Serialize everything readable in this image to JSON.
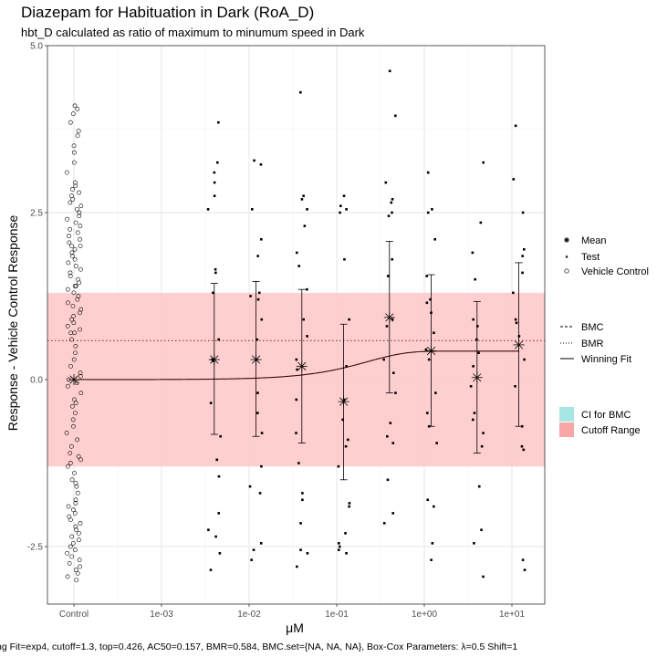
{
  "chart_data": {
    "type": "scatter",
    "title": "Diazepam for Habituation in Dark (RoA_D)",
    "subtitle": "hbt_D calculated as ratio of maximum to minumum speed in Dark",
    "xlabel": "μM",
    "ylabel_numerator": "Response - Vehicle Control Response",
    "caption": "ng Fit=exp4, cutoff=1.3, top=0.426, AC50=0.157, BMR=0.584, BMC.set={NA, NA, NA}, Box-Cox Parameters: λ=0.5 Shift=1",
    "x_scale": "log10",
    "x_ticks": [
      "Control",
      "1e-03",
      "1e-02",
      "1e-01",
      "1e+00",
      "1e+01"
    ],
    "y_ticks": [
      "-2.5",
      "0.0",
      "2.5",
      "5.0"
    ],
    "ylim": [
      -3.3,
      5.0
    ],
    "grid": true,
    "cutoff": 1.3,
    "bmr": 0.584,
    "fit": {
      "model": "exp4",
      "top": 0.426,
      "ac50": 0.157
    },
    "legend": {
      "placement": "right",
      "shapes": [
        {
          "label": "Mean",
          "icon": "asterisk-icon"
        },
        {
          "label": "Test",
          "icon": "triangle-icon"
        },
        {
          "label": "Vehicle Control",
          "icon": "open-circle-icon"
        }
      ],
      "lines": [
        {
          "label": "BMC",
          "icon": "dashed-line-icon"
        },
        {
          "label": "BMR",
          "icon": "dotted-line-icon"
        },
        {
          "label": "Winning Fit",
          "icon": "solid-line-icon"
        }
      ],
      "fills": [
        {
          "label": "CI for BMC",
          "color": "#a8e6e6"
        },
        {
          "label": "Cutoff Range",
          "color": "#f8a6a6"
        }
      ]
    },
    "colors": {
      "cutoff_band": "#ffcccc",
      "bmr_line": "#7a2020",
      "fit_line": "#3a0a0a"
    },
    "control": {
      "x_label": "Control",
      "values": [
        4.05,
        4.1,
        3.98,
        3.85,
        3.72,
        3.65,
        3.5,
        3.4,
        3.25,
        3.1,
        2.95,
        2.9,
        2.85,
        2.8,
        2.75,
        2.7,
        2.65,
        2.6,
        2.55,
        2.5,
        2.45,
        2.4,
        2.35,
        2.3,
        2.25,
        2.2,
        2.15,
        2.1,
        2.05,
        2.0,
        1.95,
        1.9,
        1.85,
        1.8,
        1.75,
        1.7,
        1.65,
        1.6,
        1.55,
        1.5,
        1.45,
        1.4,
        1.35,
        1.3,
        1.25,
        1.2,
        1.15,
        1.1,
        1.05,
        1.0,
        0.95,
        0.9,
        0.85,
        0.8,
        0.75,
        0.7,
        0.6,
        0.5,
        0.4,
        0.3,
        0.2,
        0.1,
        0.05,
        0.0,
        -0.05,
        -0.1,
        -0.2,
        -0.3,
        -0.4,
        -0.5,
        -0.6,
        -0.7,
        -0.8,
        -0.9,
        -1.0,
        -1.1,
        -1.15,
        -1.2,
        -1.25,
        -1.3,
        -1.4,
        -1.5,
        -1.6,
        -1.7,
        -1.8,
        -1.85,
        -1.9,
        -1.95,
        -2.0,
        -2.05,
        -2.1,
        -2.15,
        -2.2,
        -2.25,
        -2.3,
        -2.35,
        -2.4,
        -2.45,
        -2.5,
        -2.55,
        -2.6,
        -2.65,
        -2.7,
        -2.75,
        -2.8,
        -2.85,
        -2.9,
        -2.95,
        -3.0,
        2.0,
        1.4,
        0.7,
        -0.35,
        -1.55
      ],
      "mean": 0.0
    },
    "doses": [
      {
        "x": 0.004,
        "mean": 0.3,
        "ci": [
          -0.82,
          1.44
        ],
        "values": [
          3.85,
          3.25,
          3.1,
          2.95,
          2.75,
          2.55,
          1.65,
          1.6,
          1.3,
          0.6,
          0.3,
          0.28,
          -0.35,
          -0.85,
          -1.2,
          -1.45,
          -2.0,
          -2.25,
          -2.35,
          -2.6,
          -2.85
        ]
      },
      {
        "x": 0.012,
        "mean": 0.3,
        "ci": [
          -0.85,
          1.47
        ],
        "values": [
          3.28,
          3.22,
          2.55,
          2.1,
          1.85,
          1.3,
          1.25,
          1.2,
          0.9,
          0.6,
          0.3,
          -0.2,
          -0.5,
          -0.8,
          -1.3,
          -1.6,
          -1.7,
          -2.45,
          -2.55,
          -2.7
        ]
      },
      {
        "x": 0.04,
        "mean": 0.2,
        "ci": [
          -0.95,
          1.35
        ],
        "values": [
          4.3,
          2.75,
          2.7,
          2.55,
          2.3,
          1.9,
          1.7,
          1.35,
          0.9,
          0.65,
          0.3,
          0.15,
          -0.3,
          -0.8,
          -1.25,
          -1.7,
          -1.8,
          -2.15,
          -2.55,
          -2.6,
          -2.8
        ]
      },
      {
        "x": 0.12,
        "mean": -0.33,
        "ci": [
          -1.5,
          0.83
        ],
        "values": [
          2.75,
          2.6,
          2.55,
          2.5,
          1.8,
          0.9,
          0.2,
          -0.3,
          -0.6,
          -0.9,
          -1.0,
          -1.3,
          -1.85,
          -1.9,
          -2.3,
          -2.45,
          -2.5,
          -2.55,
          -2.6
        ]
      },
      {
        "x": 0.4,
        "mean": 0.93,
        "ci": [
          -0.2,
          2.07
        ],
        "values": [
          4.62,
          3.95,
          2.95,
          2.7,
          2.65,
          2.5,
          2.45,
          1.8,
          1.55,
          0.9,
          0.8,
          0.3,
          0.1,
          -0.2,
          -0.65,
          -0.85,
          -0.95,
          -1.5,
          -2.0,
          -2.15
        ]
      },
      {
        "x": 1.2,
        "mean": 0.43,
        "ci": [
          -0.7,
          1.57
        ],
        "values": [
          3.1,
          2.55,
          2.5,
          2.1,
          1.55,
          1.2,
          1.15,
          1.0,
          0.7,
          0.45,
          0.3,
          -0.2,
          -0.5,
          -0.7,
          -0.95,
          -1.8,
          -1.9,
          -2.45,
          -2.7
        ]
      },
      {
        "x": 4.0,
        "mean": 0.03,
        "ci": [
          -1.1,
          1.17
        ],
        "values": [
          3.25,
          2.35,
          1.9,
          1.5,
          0.9,
          0.8,
          0.6,
          0.4,
          0.2,
          -0.1,
          -0.5,
          -0.6,
          -0.8,
          -1.0,
          -1.6,
          -2.25,
          -2.45,
          -2.95
        ]
      },
      {
        "x": 12.0,
        "mean": 0.52,
        "ci": [
          -0.7,
          1.75
        ],
        "values": [
          3.8,
          3.0,
          2.5,
          1.95,
          1.85,
          1.6,
          1.3,
          0.9,
          0.85,
          0.65,
          0.3,
          -0.1,
          -0.7,
          -1.0,
          -1.05,
          -2.7,
          -2.85
        ]
      }
    ]
  }
}
